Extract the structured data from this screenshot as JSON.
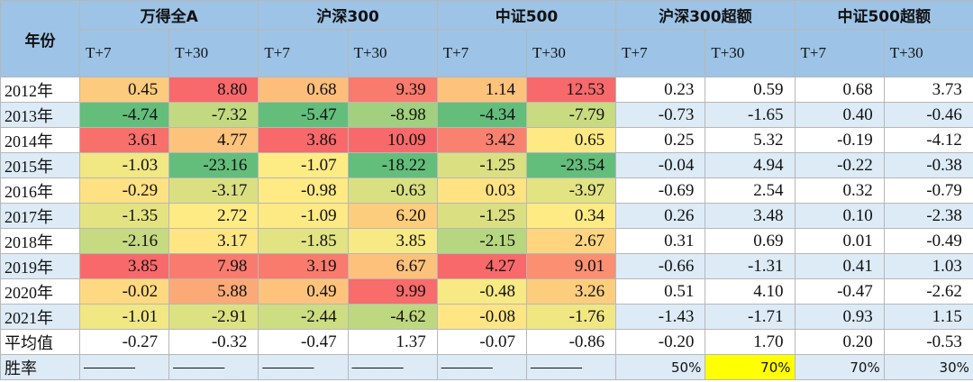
{
  "table": {
    "corner": "年份",
    "groups": [
      "万得全A",
      "沪深300",
      "中证500",
      "沪深300超额",
      "中证500超额"
    ],
    "subheaders": [
      "T+7",
      "T+30",
      "T+7",
      "T+30",
      "T+7",
      "T+30",
      "T+7",
      "T+30",
      "T+7",
      "T+30"
    ],
    "heatmap_columns": 6,
    "rows": [
      {
        "label": "2012年",
        "cells": [
          "0.45",
          "8.80",
          "0.68",
          "9.39",
          "1.14",
          "12.53",
          "0.23",
          "0.59",
          "0.68",
          "3.73"
        ]
      },
      {
        "label": "2013年",
        "cells": [
          "-4.74",
          "-7.32",
          "-5.47",
          "-8.98",
          "-4.34",
          "-7.79",
          "-0.73",
          "-1.65",
          "0.40",
          "-0.46"
        ]
      },
      {
        "label": "2014年",
        "cells": [
          "3.61",
          "4.77",
          "3.86",
          "10.09",
          "3.42",
          "0.65",
          "0.25",
          "5.32",
          "-0.19",
          "-4.12"
        ]
      },
      {
        "label": "2015年",
        "cells": [
          "-1.03",
          "-23.16",
          "-1.07",
          "-18.22",
          "-1.25",
          "-23.54",
          "-0.04",
          "4.94",
          "-0.22",
          "-0.38"
        ]
      },
      {
        "label": "2016年",
        "cells": [
          "-0.29",
          "-3.17",
          "-0.98",
          "-0.63",
          "0.03",
          "-3.97",
          "-0.69",
          "2.54",
          "0.32",
          "-0.79"
        ]
      },
      {
        "label": "2017年",
        "cells": [
          "-1.35",
          "2.72",
          "-1.09",
          "6.20",
          "-1.25",
          "0.34",
          "0.26",
          "3.48",
          "0.10",
          "-2.38"
        ]
      },
      {
        "label": "2018年",
        "cells": [
          "-2.16",
          "3.17",
          "-1.85",
          "3.85",
          "-2.15",
          "2.67",
          "0.31",
          "0.69",
          "0.01",
          "-0.49"
        ]
      },
      {
        "label": "2019年",
        "cells": [
          "3.85",
          "7.98",
          "3.19",
          "6.67",
          "4.27",
          "9.01",
          "-0.66",
          "-1.31",
          "0.41",
          "1.03"
        ]
      },
      {
        "label": "2020年",
        "cells": [
          "-0.02",
          "5.88",
          "0.49",
          "9.99",
          "-0.48",
          "3.26",
          "0.51",
          "4.10",
          "-0.47",
          "-2.62"
        ]
      },
      {
        "label": "2021年",
        "cells": [
          "-1.01",
          "-2.91",
          "-2.44",
          "-4.62",
          "-0.08",
          "-1.76",
          "-1.43",
          "-1.71",
          "0.93",
          "1.15"
        ]
      }
    ],
    "average": {
      "label": "平均值",
      "cells": [
        "-0.27",
        "-0.32",
        "-0.47",
        "1.37",
        "-0.07",
        "-0.86",
        "-0.20",
        "1.70",
        "0.20",
        "-0.53"
      ]
    },
    "win_rate": {
      "label": "胜率",
      "cells": [
        "———",
        "———",
        "———",
        "———",
        "———",
        "———",
        "50%",
        "70%",
        "70%",
        "30%"
      ],
      "highlight": 7
    }
  }
}
